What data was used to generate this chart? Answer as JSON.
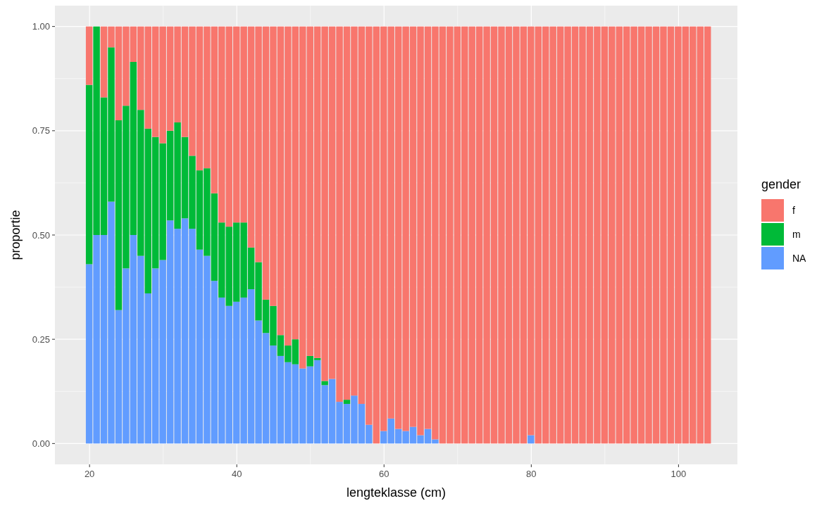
{
  "chart_data": {
    "type": "bar",
    "stacked": true,
    "xlabel": "lengteklasse (cm)",
    "ylabel": "proportie",
    "legend_title": "gender",
    "legend": "right",
    "grid": true,
    "x": [
      20,
      21,
      22,
      23,
      24,
      25,
      26,
      27,
      28,
      29,
      30,
      31,
      32,
      33,
      34,
      35,
      36,
      37,
      38,
      39,
      40,
      41,
      42,
      43,
      44,
      45,
      46,
      47,
      48,
      49,
      50,
      51,
      52,
      53,
      54,
      55,
      56,
      57,
      58,
      59,
      60,
      61,
      62,
      63,
      64,
      65,
      66,
      67,
      68,
      69,
      70,
      71,
      72,
      73,
      74,
      75,
      76,
      77,
      78,
      79,
      80,
      81,
      82,
      83,
      84,
      85,
      86,
      87,
      88,
      89,
      90,
      91,
      92,
      93,
      94,
      95,
      96,
      97,
      98,
      99,
      100,
      101,
      102,
      103,
      104
    ],
    "series": [
      {
        "name": "NA",
        "color": "#619cff",
        "values": [
          0.43,
          0.5,
          0.5,
          0.58,
          0.32,
          0.42,
          0.5,
          0.45,
          0.36,
          0.42,
          0.44,
          0.535,
          0.515,
          0.54,
          0.515,
          0.465,
          0.45,
          0.39,
          0.35,
          0.33,
          0.34,
          0.35,
          0.37,
          0.295,
          0.265,
          0.235,
          0.21,
          0.195,
          0.19,
          0.18,
          0.185,
          0.2,
          0.14,
          0.155,
          0.1,
          0.095,
          0.115,
          0.095,
          0.045,
          0,
          0.03,
          0.06,
          0.035,
          0.03,
          0.04,
          0.02,
          0.035,
          0.01,
          0,
          0,
          0,
          0,
          0,
          0,
          0,
          0,
          0,
          0,
          0,
          0,
          0.02,
          0,
          0,
          0,
          0,
          0,
          0,
          0,
          0,
          0,
          0,
          0,
          0,
          0,
          0,
          0,
          0,
          0,
          0,
          0,
          0,
          0,
          0,
          0,
          0
        ]
      },
      {
        "name": "m",
        "color": "#00ba38",
        "values": [
          0.43,
          0.5,
          0.33,
          0.37,
          0.455,
          0.39,
          0.415,
          0.35,
          0.395,
          0.315,
          0.28,
          0.215,
          0.255,
          0.195,
          0.175,
          0.19,
          0.21,
          0.21,
          0.18,
          0.19,
          0.19,
          0.18,
          0.1,
          0.14,
          0.08,
          0.095,
          0.05,
          0.04,
          0.06,
          0,
          0.025,
          0.005,
          0.01,
          0,
          0,
          0.01,
          0,
          0,
          0,
          0,
          0,
          0,
          0,
          0,
          0,
          0,
          0,
          0,
          0,
          0,
          0,
          0,
          0,
          0,
          0,
          0,
          0,
          0,
          0,
          0,
          0,
          0,
          0,
          0,
          0,
          0,
          0,
          0,
          0,
          0,
          0,
          0,
          0,
          0,
          0,
          0,
          0,
          0,
          0,
          0,
          0,
          0,
          0,
          0,
          0
        ]
      },
      {
        "name": "f",
        "color": "#f8766d",
        "values": [
          0.14,
          0,
          0.17,
          0.05,
          0.225,
          0.19,
          0.085,
          0.2,
          0.245,
          0.265,
          0.28,
          0.25,
          0.23,
          0.265,
          0.31,
          0.345,
          0.34,
          0.4,
          0.47,
          0.48,
          0.47,
          0.47,
          0.53,
          0.565,
          0.655,
          0.67,
          0.74,
          0.765,
          0.75,
          0.82,
          0.79,
          0.795,
          0.85,
          0.845,
          0.9,
          0.895,
          0.885,
          0.905,
          0.955,
          1,
          0.97,
          0.94,
          0.965,
          0.97,
          0.96,
          0.98,
          0.965,
          0.99,
          1,
          1,
          1,
          1,
          1,
          1,
          1,
          1,
          1,
          1,
          1,
          1,
          0.98,
          1,
          1,
          1,
          1,
          1,
          1,
          1,
          1,
          1,
          1,
          1,
          1,
          1,
          1,
          1,
          1,
          1,
          1,
          1,
          1,
          1,
          1,
          1,
          1
        ]
      }
    ],
    "xlim": [
      15.3,
      108.0
    ],
    "xticks": [
      20,
      {
        "value": 30,
        "label": null
      },
      40,
      {
        "value": 50,
        "label": null
      },
      60,
      {
        "value": 70,
        "label": null
      },
      80,
      {
        "value": 90,
        "label": null
      },
      100
    ],
    "ylim": [
      -0.05,
      1.05
    ],
    "yticks": [
      {
        "value": 0,
        "label": "0.00"
      },
      {
        "value": 0.125,
        "label": null
      },
      {
        "value": 0.25,
        "label": "0.25"
      },
      {
        "value": 0.375,
        "label": null
      },
      {
        "value": 0.5,
        "label": "0.50"
      },
      {
        "value": 0.625,
        "label": null
      },
      {
        "value": 0.75,
        "label": "0.75"
      },
      {
        "value": 0.875,
        "label": null
      },
      {
        "value": 1,
        "label": "1.00"
      }
    ]
  }
}
